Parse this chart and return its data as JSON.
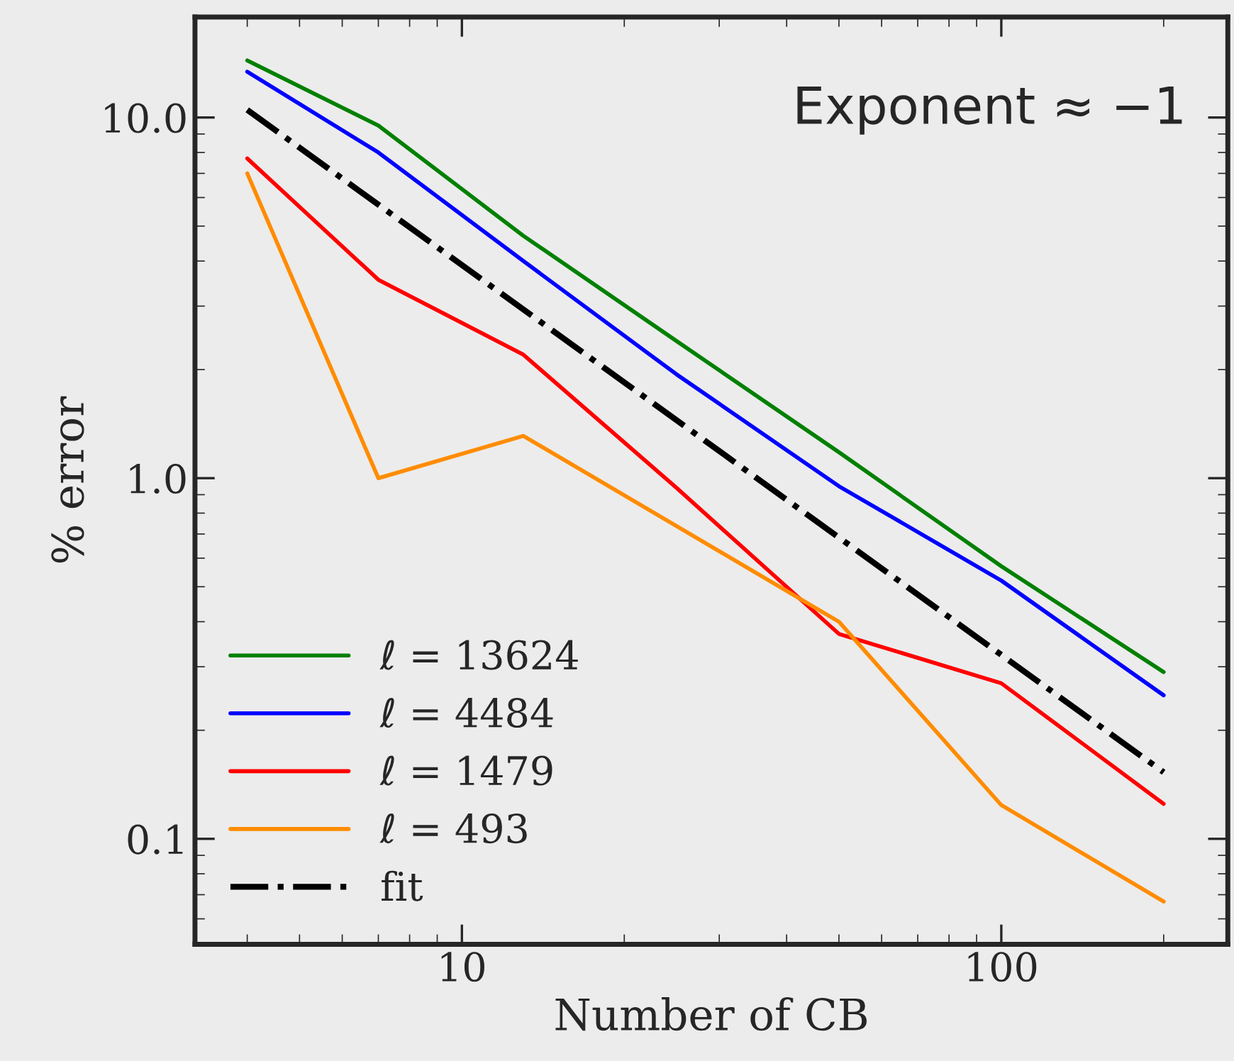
{
  "chart_data": {
    "type": "line",
    "xlabel": "Number of CB",
    "ylabel": "% error",
    "log": "xy",
    "xlim": [
      3.2,
      263
    ],
    "ylim": [
      0.051,
      19
    ],
    "xticks": [
      10,
      100
    ],
    "yticks": [
      {
        "value": 0.1,
        "label": "0.1"
      },
      {
        "value": 1,
        "label": "1.0"
      },
      {
        "value": 10,
        "label": "10.0"
      }
    ],
    "grid": false,
    "legend": "bottom left",
    "marker": "none",
    "series": [
      {
        "name": "ℓ = 13624",
        "color": "#008000",
        "x": [
          4,
          7,
          13,
          25,
          50,
          100,
          200
        ],
        "values": [
          14.4,
          9.5,
          4.7,
          2.4,
          1.18,
          0.57,
          0.29
        ]
      },
      {
        "name": "ℓ = 4484",
        "color": "#0000ff",
        "x": [
          4,
          7,
          13,
          25,
          50,
          100,
          200
        ],
        "values": [
          13.4,
          8.0,
          4.0,
          1.94,
          0.95,
          0.52,
          0.25
        ]
      },
      {
        "name": "ℓ = 1479",
        "color": "#ff0000",
        "x": [
          4,
          7,
          13,
          25,
          50,
          100,
          200
        ],
        "values": [
          7.7,
          3.55,
          2.2,
          0.94,
          0.37,
          0.27,
          0.125
        ]
      },
      {
        "name": "ℓ = 493",
        "color": "#ff8c00",
        "x": [
          4,
          7,
          13,
          50,
          100,
          200
        ],
        "values": [
          7.0,
          1.0,
          1.31,
          0.4,
          0.124,
          0.067
        ]
      },
      {
        "name": "fit",
        "color": "#000000",
        "line_style": "dashdot",
        "x": [
          4,
          200
        ],
        "values": [
          10.5,
          0.153
        ]
      }
    ],
    "annotations": [
      "Exponent ≈ −1"
    ]
  }
}
